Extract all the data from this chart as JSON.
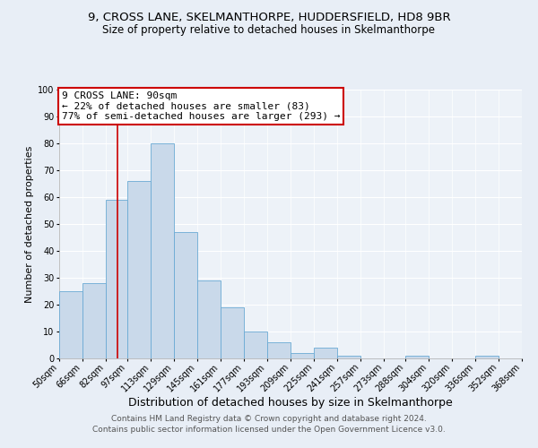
{
  "title": "9, CROSS LANE, SKELMANTHORPE, HUDDERSFIELD, HD8 9BR",
  "subtitle": "Size of property relative to detached houses in Skelmanthorpe",
  "xlabel": "Distribution of detached houses by size in Skelmanthorpe",
  "ylabel": "Number of detached properties",
  "bar_edges": [
    50,
    66,
    82,
    97,
    113,
    129,
    145,
    161,
    177,
    193,
    209,
    225,
    241,
    257,
    273,
    288,
    304,
    320,
    336,
    352,
    368
  ],
  "bar_heights": [
    25,
    28,
    59,
    66,
    80,
    47,
    29,
    19,
    10,
    6,
    2,
    4,
    1,
    0,
    0,
    1,
    0,
    0,
    1,
    0
  ],
  "bar_color": "#c9d9ea",
  "bar_edge_color": "#6aaad4",
  "vline_x": 90,
  "vline_color": "#cc0000",
  "annotation_title": "9 CROSS LANE: 90sqm",
  "annotation_line1": "← 22% of detached houses are smaller (83)",
  "annotation_line2": "77% of semi-detached houses are larger (293) →",
  "annotation_box_color": "#cc0000",
  "ylim": [
    0,
    100
  ],
  "yticks": [
    0,
    10,
    20,
    30,
    40,
    50,
    60,
    70,
    80,
    90,
    100
  ],
  "tick_labels": [
    "50sqm",
    "66sqm",
    "82sqm",
    "97sqm",
    "113sqm",
    "129sqm",
    "145sqm",
    "161sqm",
    "177sqm",
    "193sqm",
    "209sqm",
    "225sqm",
    "241sqm",
    "257sqm",
    "273sqm",
    "288sqm",
    "304sqm",
    "320sqm",
    "336sqm",
    "352sqm",
    "368sqm"
  ],
  "footer1": "Contains HM Land Registry data © Crown copyright and database right 2024.",
  "footer2": "Contains public sector information licensed under the Open Government Licence v3.0.",
  "bg_color": "#e8eef6",
  "plot_bg_color": "#edf2f8",
  "grid_color": "#ffffff",
  "title_fontsize": 9.5,
  "subtitle_fontsize": 8.5,
  "xlabel_fontsize": 9,
  "ylabel_fontsize": 8,
  "tick_fontsize": 7,
  "annotation_fontsize": 8,
  "footer_fontsize": 6.5
}
